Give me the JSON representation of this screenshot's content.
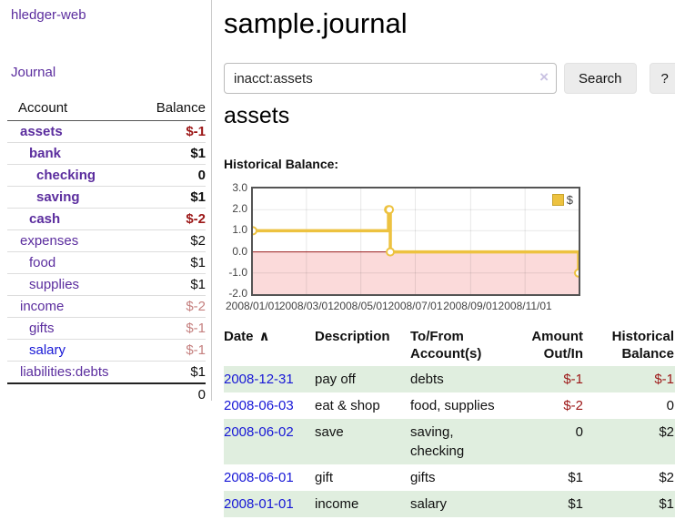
{
  "app": {
    "brand": "hledger-web"
  },
  "sidebar": {
    "journal_link": "Journal",
    "accounts_table": {
      "account_header": "Account",
      "balance_header": "Balance",
      "rows": [
        {
          "name": "assets",
          "balance": "$-1",
          "level": 1,
          "in_filter": true,
          "balance_tone": "neg-strong",
          "name_tone": "purple"
        },
        {
          "name": "bank",
          "balance": "$1",
          "level": 2,
          "in_filter": true,
          "balance_tone": "plain",
          "name_tone": "purple"
        },
        {
          "name": "checking",
          "balance": "0",
          "level": 3,
          "in_filter": true,
          "balance_tone": "plain",
          "name_tone": "purple"
        },
        {
          "name": "saving",
          "balance": "$1",
          "level": 3,
          "in_filter": true,
          "balance_tone": "plain",
          "name_tone": "purple"
        },
        {
          "name": "cash",
          "balance": "$-2",
          "level": 2,
          "in_filter": true,
          "balance_tone": "neg-strong",
          "name_tone": "purple"
        },
        {
          "name": "expenses",
          "balance": "$2",
          "level": 1,
          "in_filter": false,
          "balance_tone": "plain",
          "name_tone": "purple"
        },
        {
          "name": "food",
          "balance": "$1",
          "level": 2,
          "in_filter": false,
          "balance_tone": "plain",
          "name_tone": "purple"
        },
        {
          "name": "supplies",
          "balance": "$1",
          "level": 2,
          "in_filter": false,
          "balance_tone": "plain",
          "name_tone": "purple"
        },
        {
          "name": "income",
          "balance": "$-2",
          "level": 1,
          "in_filter": false,
          "balance_tone": "neg-faded",
          "name_tone": "purple"
        },
        {
          "name": "gifts",
          "balance": "$-1",
          "level": 2,
          "in_filter": false,
          "balance_tone": "neg-faded",
          "name_tone": "purple"
        },
        {
          "name": "salary",
          "balance": "$-1",
          "level": 2,
          "in_filter": false,
          "balance_tone": "neg-faded",
          "name_tone": "blue"
        },
        {
          "name": "liabilities:debts",
          "balance": "$1",
          "level": 1,
          "in_filter": false,
          "balance_tone": "plain",
          "name_tone": "purple"
        }
      ],
      "total": "0"
    }
  },
  "main": {
    "title": "sample.journal",
    "search": {
      "value": "inacct:assets",
      "clear_icon": "×",
      "button_label": "Search",
      "help_label": "?"
    },
    "account_heading": "assets",
    "section_label": "Historical Balance:"
  },
  "chart_data": {
    "type": "line",
    "title": "Historical Balance:",
    "step": true,
    "x_range": [
      "2008-01-01",
      "2008-12-31"
    ],
    "ylim": [
      -2,
      3
    ],
    "y_ticks": [
      3.0,
      2.0,
      1.0,
      0.0,
      -1.0,
      -2.0
    ],
    "y_tick_labels": [
      "3.0",
      "2.0",
      "1.0",
      "0.0",
      "-1.0",
      "-2.0"
    ],
    "x_tick_labels": [
      "2008/01/01",
      "2008/03/01",
      "2008/05/01",
      "2008/07/01",
      "2008/09/01",
      "2008/11/01"
    ],
    "series": [
      {
        "name": "$",
        "points": [
          [
            "2008-01-01",
            1
          ],
          [
            "2008-06-01",
            2
          ],
          [
            "2008-06-02",
            2
          ],
          [
            "2008-06-03",
            0
          ],
          [
            "2008-12-31",
            -1
          ]
        ]
      }
    ],
    "legend_position": "top-right",
    "negative_region_shaded": true,
    "grid": true
  },
  "register": {
    "headers": {
      "date": "Date",
      "sort_icon": "∧",
      "description": "Description",
      "accounts": "To/From Account(s)",
      "amount": "Amount Out/In",
      "balance": "Historical Balance"
    },
    "rows": [
      {
        "date": "2008-12-31",
        "description": "pay off",
        "accounts": "debts",
        "amount": "$-1",
        "amount_negative": true,
        "balance": "$-1",
        "balance_negative": true
      },
      {
        "date": "2008-06-03",
        "description": "eat & shop",
        "accounts": "food, supplies",
        "amount": "$-2",
        "amount_negative": true,
        "balance": "0",
        "balance_negative": false
      },
      {
        "date": "2008-06-02",
        "description": "save",
        "accounts": "saving, checking",
        "amount": "0",
        "amount_negative": false,
        "balance": "$2",
        "balance_negative": false
      },
      {
        "date": "2008-06-01",
        "description": "gift",
        "accounts": "gifts",
        "amount": "$1",
        "amount_negative": false,
        "balance": "$2",
        "balance_negative": false
      },
      {
        "date": "2008-01-01",
        "description": "income",
        "accounts": "salary",
        "amount": "$1",
        "amount_negative": false,
        "balance": "$1",
        "balance_negative": false
      }
    ]
  },
  "colors": {
    "purple_link": "#5b2d9e",
    "blue_link": "#1717d6",
    "negative_strong": "#9c1717",
    "negative_faded": "#c5807f",
    "register_stripe": "#e0eedf",
    "chart_line": "#edc240",
    "chart_negative_fill": "#fbdada",
    "chart_zero_line": "#991b1b",
    "chart_border": "#545454",
    "button_bg": "#ececec",
    "clear_icon": "#c9c2e2"
  }
}
